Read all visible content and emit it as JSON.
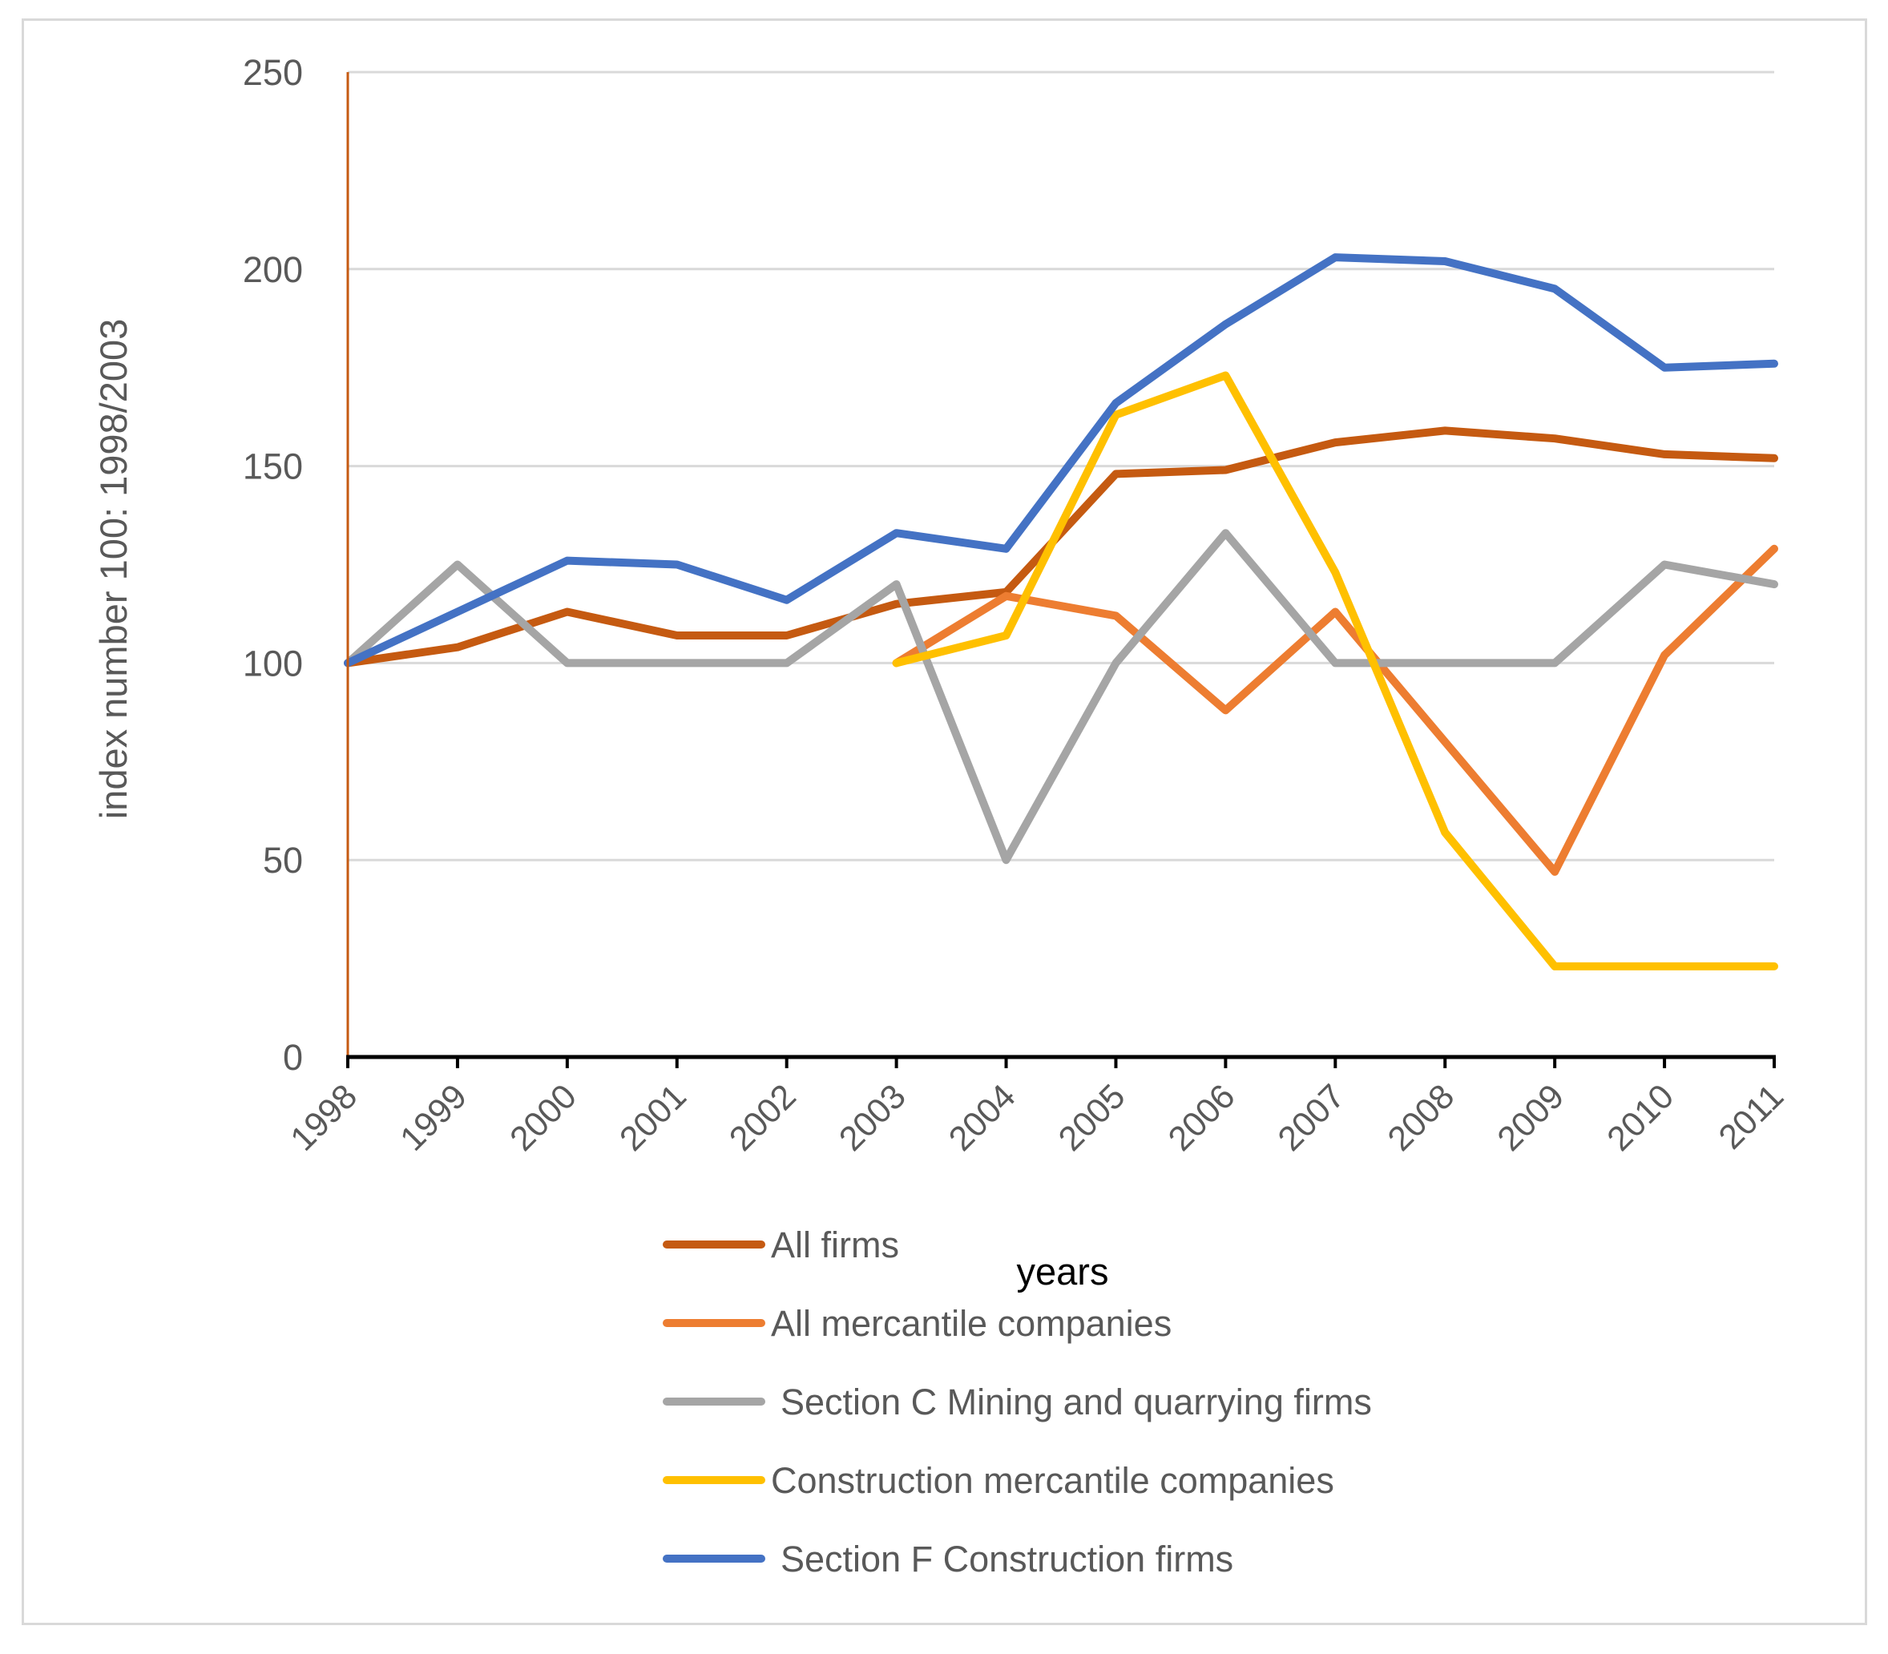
{
  "chart_data": {
    "type": "line",
    "title": "",
    "xlabel": "years",
    "ylabel": "index number 100: 1998/2003",
    "ylim": [
      0,
      250
    ],
    "yticks": [
      0,
      50,
      100,
      150,
      200,
      250
    ],
    "grid": true,
    "legend_position": "bottom",
    "categories": [
      "1998",
      "1999",
      "2000",
      "2001",
      "2002",
      "2003",
      "2004",
      "2005",
      "2006",
      "2007",
      "2008",
      "2009",
      "2010",
      "2011"
    ],
    "series": [
      {
        "name": "All firms",
        "color": "#c55a11",
        "values": [
          100,
          104,
          113,
          107,
          107,
          115,
          118,
          148,
          149,
          156,
          159,
          157,
          153,
          152
        ]
      },
      {
        "name": "All mercantile companies",
        "color": "#ed7d31",
        "values": [
          null,
          null,
          null,
          null,
          null,
          100,
          117,
          112,
          88,
          113,
          80,
          47,
          102,
          129
        ]
      },
      {
        "name": "Section C Mining and quarrying firms",
        "color": "#a5a5a5",
        "values": [
          100,
          125,
          100,
          100,
          100,
          120,
          50,
          100,
          133,
          100,
          100,
          100,
          125,
          120
        ]
      },
      {
        "name": "Construction mercantile companies",
        "color": "#ffc000",
        "values": [
          null,
          null,
          null,
          null,
          null,
          100,
          107,
          163,
          173,
          123,
          57,
          23,
          23,
          23
        ]
      },
      {
        "name": "Section F Construction firms",
        "color": "#4472c4",
        "values": [
          100,
          113,
          126,
          125,
          116,
          133,
          129,
          166,
          186,
          203,
          202,
          195,
          175,
          176
        ]
      }
    ]
  }
}
